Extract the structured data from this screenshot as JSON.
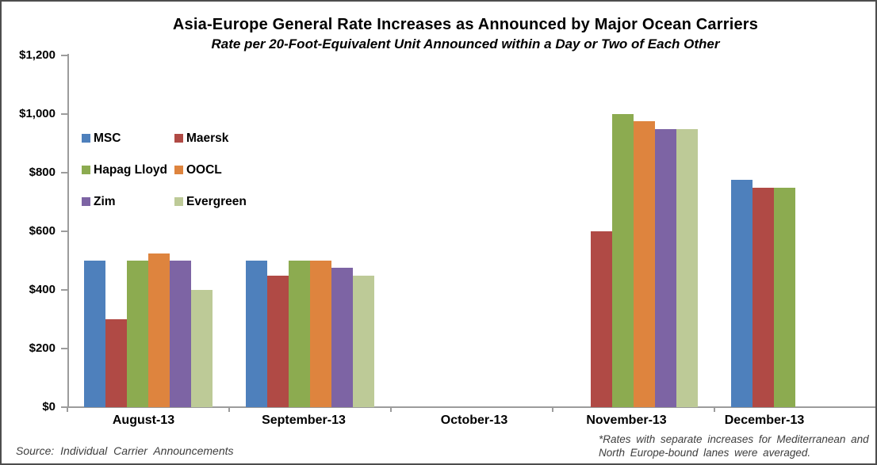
{
  "chart": {
    "title": "Asia-Europe General Rate Increases as Announced by Major Ocean Carriers",
    "subtitle": "Rate per 20-Foot-Equivalent Unit Announced within a Day or Two of Each Other",
    "source_note": "Source: Individual Carrier Announcements",
    "footnote": [
      "*Rates with separate increases for Mediterranean and",
      "North Europe-bound lanes were averaged."
    ]
  },
  "chart_data": {
    "type": "bar",
    "title": "Asia-Europe General Rate Increases as Announced by Major Ocean Carriers",
    "subtitle": "Rate per 20-Foot-Equivalent Unit Announced within a Day or Two of Each Other",
    "categories": [
      "August-13",
      "September-13",
      "October-13",
      "November-13",
      "December-13"
    ],
    "series": [
      {
        "name": "MSC",
        "color": "#4E80BC",
        "values": [
          500,
          500,
          null,
          null,
          775
        ]
      },
      {
        "name": "Maersk",
        "color": "#B04A45",
        "values": [
          300,
          450,
          null,
          600,
          750
        ]
      },
      {
        "name": "Hapag Lloyd",
        "color": "#8CAB50",
        "values": [
          500,
          500,
          null,
          1000,
          750
        ]
      },
      {
        "name": "OOCL",
        "color": "#DE843E",
        "values": [
          525,
          500,
          null,
          975,
          null
        ]
      },
      {
        "name": "Zim",
        "color": "#7D64A4",
        "values": [
          500,
          475,
          null,
          950,
          null
        ]
      },
      {
        "name": "Evergreen",
        "color": "#BDCA97",
        "values": [
          400,
          450,
          null,
          950,
          null
        ]
      }
    ],
    "y_axis": {
      "min": 0,
      "max": 1200,
      "step": 200,
      "tick_labels": [
        "$0",
        "$200",
        "$400",
        "$600",
        "$800",
        "$1,000",
        "$1,200"
      ],
      "unit": "USD per TEU"
    },
    "legend_position": "inside top-left",
    "grid": false
  }
}
